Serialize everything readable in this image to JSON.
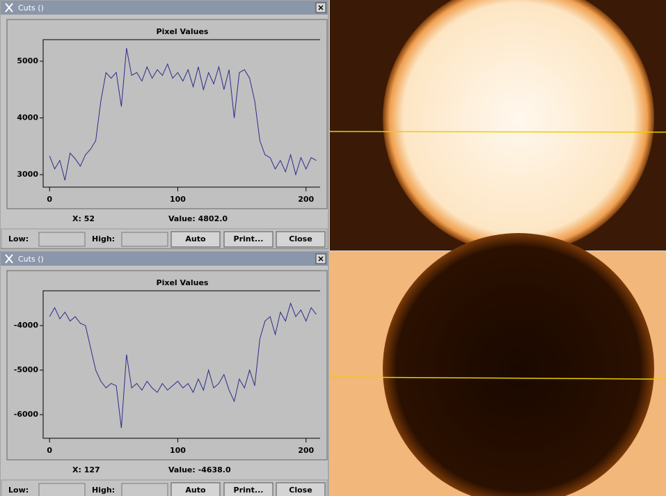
{
  "windows": [
    {
      "title": "Cuts ()",
      "chart_data": {
        "type": "line",
        "title": "Pixel Values",
        "x": [
          0,
          4,
          8,
          12,
          16,
          20,
          24,
          28,
          32,
          36,
          40,
          44,
          48,
          52,
          56,
          60,
          64,
          68,
          72,
          76,
          80,
          84,
          88,
          92,
          96,
          100,
          104,
          108,
          112,
          116,
          120,
          124,
          128,
          132,
          136,
          140,
          144,
          148,
          152,
          156,
          160,
          164,
          168,
          172,
          176,
          180,
          184,
          188,
          192,
          196,
          200,
          204,
          208
        ],
        "series": [
          {
            "color": "#2b2b8c",
            "values": [
              3330,
              3100,
              3250,
              2900,
              3380,
              3280,
              3150,
              3350,
              3450,
              3600,
              4300,
              4800,
              4700,
              4802,
              4200,
              5230,
              4750,
              4800,
              4650,
              4900,
              4700,
              4850,
              4750,
              4950,
              4700,
              4800,
              4650,
              4850,
              4550,
              4900,
              4500,
              4800,
              4600,
              4900,
              4500,
              4850,
              4000,
              4800,
              4850,
              4700,
              4300,
              3600,
              3350,
              3300,
              3100,
              3250,
              3050,
              3350,
              3000,
              3300,
              3100,
              3300,
              3250
            ]
          }
        ],
        "xlim": [
          -5,
          211
        ],
        "ylim": [
          2780,
          5380
        ],
        "xticks": [
          0,
          100,
          200
        ],
        "yticks": [
          3000,
          4000,
          5000
        ]
      },
      "status": {
        "x": "X: 52",
        "value": "Value: 4802.0"
      },
      "controls": {
        "low": "Low:",
        "high": "High:",
        "buttons": [
          "Auto",
          "Print...",
          "Close"
        ]
      }
    },
    {
      "title": "Cuts ()",
      "chart_data": {
        "type": "line",
        "title": "Pixel Values",
        "x": [
          0,
          4,
          8,
          12,
          16,
          20,
          24,
          28,
          32,
          36,
          40,
          44,
          48,
          52,
          56,
          60,
          64,
          68,
          72,
          76,
          80,
          84,
          88,
          92,
          96,
          100,
          104,
          108,
          112,
          116,
          120,
          124,
          128,
          132,
          136,
          140,
          144,
          148,
          152,
          156,
          160,
          164,
          168,
          172,
          176,
          180,
          184,
          188,
          192,
          196,
          200,
          204,
          208
        ],
        "series": [
          {
            "color": "#2b2b8c",
            "values": [
              -3800,
              -3600,
              -3850,
              -3700,
              -3900,
              -3800,
              -3950,
              -4000,
              -4500,
              -5000,
              -5250,
              -5400,
              -5300,
              -5350,
              -6300,
              -4650,
              -5400,
              -5300,
              -5450,
              -5250,
              -5400,
              -5500,
              -5300,
              -5450,
              -5350,
              -5250,
              -5400,
              -5300,
              -5500,
              -5200,
              -5450,
              -5000,
              -5400,
              -5300,
              -5100,
              -5450,
              -5700,
              -5200,
              -5400,
              -5000,
              -5350,
              -4300,
              -3900,
              -3800,
              -4200,
              -3700,
              -3900,
              -3500,
              -3800,
              -3650,
              -3900,
              -3600,
              -3750
            ]
          }
        ],
        "xlim": [
          -5,
          211
        ],
        "ylim": [
          -6530,
          -3220
        ],
        "xticks": [
          0,
          100,
          200
        ],
        "yticks": [
          -4000,
          -5000,
          -6000
        ]
      },
      "status": {
        "x": "X: 127",
        "value": "Value: -4638.0"
      },
      "controls": {
        "low": "Low:",
        "high": "High:",
        "buttons": [
          "Auto",
          "Print...",
          "Close"
        ]
      }
    }
  ]
}
